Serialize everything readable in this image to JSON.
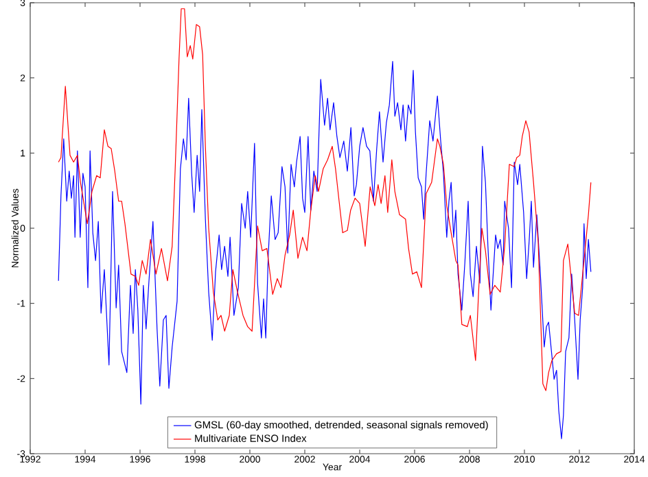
{
  "chart_data": {
    "type": "line",
    "xlabel": "Year",
    "ylabel": "Normalized Values",
    "xlim": [
      1992,
      2014
    ],
    "ylim": [
      -3,
      3
    ],
    "xticks": [
      1992,
      1994,
      1996,
      1998,
      2000,
      2002,
      2004,
      2006,
      2008,
      2010,
      2012,
      2014
    ],
    "yticks": [
      -3,
      -2,
      -1,
      0,
      1,
      2,
      3
    ],
    "grid": false,
    "legend": "bottom",
    "line_style": "solid",
    "marker": "none",
    "series": [
      {
        "name": "GMSL (60-day smoothed, detrended, seasonal signals removed)",
        "color": "#0000ff",
        "x": [
          1993.03,
          1993.12,
          1993.22,
          1993.33,
          1993.42,
          1993.5,
          1993.58,
          1993.63,
          1993.72,
          1993.82,
          1993.92,
          1994.0,
          1994.1,
          1994.18,
          1994.28,
          1994.38,
          1994.48,
          1994.58,
          1994.7,
          1994.87,
          1995.0,
          1995.13,
          1995.22,
          1995.33,
          1995.52,
          1995.65,
          1995.75,
          1995.83,
          1995.92,
          1996.03,
          1996.12,
          1996.22,
          1996.32,
          1996.47,
          1996.62,
          1996.72,
          1996.85,
          1996.95,
          1997.05,
          1997.17,
          1997.35,
          1997.47,
          1997.58,
          1997.68,
          1997.77,
          1997.88,
          1997.97,
          1998.08,
          1998.17,
          1998.25,
          1998.38,
          1998.5,
          1998.63,
          1998.75,
          1998.88,
          1998.97,
          1999.08,
          1999.2,
          1999.28,
          1999.42,
          1999.58,
          1999.7,
          1999.83,
          1999.92,
          2000.03,
          2000.17,
          2000.28,
          2000.42,
          2000.5,
          2000.58,
          2000.67,
          2000.78,
          2000.92,
          2001.03,
          2001.17,
          2001.28,
          2001.38,
          2001.5,
          2001.62,
          2001.7,
          2001.83,
          2001.92,
          2002.0,
          2002.12,
          2002.22,
          2002.33,
          2002.45,
          2002.58,
          2002.72,
          2002.83,
          2002.92,
          2003.05,
          2003.17,
          2003.28,
          2003.42,
          2003.55,
          2003.68,
          2003.8,
          2003.88,
          2004.0,
          2004.12,
          2004.25,
          2004.37,
          2004.5,
          2004.62,
          2004.72,
          2004.85,
          2004.97,
          2005.08,
          2005.2,
          2005.28,
          2005.38,
          2005.5,
          2005.58,
          2005.67,
          2005.77,
          2005.87,
          2005.95,
          2006.03,
          2006.13,
          2006.25,
          2006.33,
          2006.42,
          2006.55,
          2006.67,
          2006.83,
          2006.95,
          2007.05,
          2007.17,
          2007.25,
          2007.33,
          2007.42,
          2007.5,
          2007.58,
          2007.72,
          2007.83,
          2007.95,
          2008.03,
          2008.13,
          2008.25,
          2008.38,
          2008.47,
          2008.58,
          2008.67,
          2008.78,
          2008.95,
          2009.03,
          2009.12,
          2009.22,
          2009.28,
          2009.42,
          2009.53,
          2009.63,
          2009.75,
          2009.83,
          2009.97,
          2010.08,
          2010.17,
          2010.25,
          2010.33,
          2010.45,
          2010.58,
          2010.72,
          2010.8,
          2010.88,
          2011.0,
          2011.08,
          2011.17,
          2011.25,
          2011.35,
          2011.42,
          2011.5,
          2011.62,
          2011.72,
          2011.83,
          2011.95,
          2012.03,
          2012.12,
          2012.17,
          2012.25,
          2012.33,
          2012.42
        ],
        "values": [
          -0.7,
          0.43,
          1.19,
          0.36,
          0.76,
          0.4,
          0.7,
          -0.12,
          1.03,
          -0.12,
          0.73,
          0.55,
          -0.79,
          1.03,
          -0.06,
          -0.43,
          0.09,
          -1.13,
          -0.55,
          -1.82,
          0.49,
          -1.06,
          -0.49,
          -1.64,
          -1.92,
          -0.76,
          -1.4,
          -0.55,
          -1.09,
          -2.34,
          -0.76,
          -1.34,
          -0.73,
          0.09,
          -1.34,
          -2.1,
          -1.22,
          -1.16,
          -2.13,
          -1.58,
          -0.97,
          0.79,
          1.19,
          0.91,
          1.73,
          0.73,
          0.21,
          0.97,
          0.49,
          1.58,
          0.12,
          -0.85,
          -1.49,
          -0.58,
          -0.09,
          -0.55,
          -0.24,
          -0.64,
          -0.12,
          -1.16,
          -0.79,
          0.33,
          0.0,
          0.49,
          -0.12,
          1.13,
          -0.73,
          -1.46,
          -0.94,
          -1.46,
          -0.36,
          0.43,
          -0.15,
          -0.06,
          0.82,
          0.55,
          -0.33,
          0.85,
          0.55,
          0.88,
          1.22,
          0.4,
          0.21,
          1.22,
          0.24,
          0.76,
          0.49,
          1.98,
          1.37,
          1.73,
          1.31,
          1.67,
          1.22,
          0.94,
          1.16,
          0.76,
          1.34,
          0.43,
          0.58,
          1.09,
          1.34,
          1.09,
          1.03,
          0.36,
          1.06,
          1.55,
          0.88,
          1.4,
          1.64,
          2.22,
          1.49,
          1.67,
          1.31,
          1.64,
          1.16,
          1.64,
          1.52,
          2.1,
          1.28,
          0.67,
          0.55,
          0.12,
          0.73,
          1.43,
          1.16,
          1.76,
          1.16,
          0.73,
          -0.12,
          0.36,
          0.61,
          -0.12,
          0.24,
          -0.61,
          -1.09,
          -0.46,
          0.36,
          -0.61,
          -0.91,
          -0.24,
          -0.73,
          1.09,
          0.61,
          -0.24,
          -1.09,
          -0.09,
          -0.27,
          -0.15,
          -0.49,
          0.36,
          0.0,
          -0.79,
          0.88,
          0.58,
          0.85,
          0.21,
          -0.67,
          -0.18,
          0.36,
          -0.52,
          0.18,
          -0.61,
          -1.58,
          -1.31,
          -1.25,
          -1.7,
          -2.01,
          -1.89,
          -2.43,
          -2.8,
          -2.49,
          -1.64,
          -1.46,
          -0.61,
          -1.22,
          -2.01,
          -1.22,
          -0.79,
          0.06,
          -0.67,
          -0.15,
          -0.58
        ]
      },
      {
        "name": "Multivariate ENSO Index",
        "color": "#ff0000",
        "x": [
          1993.03,
          1993.12,
          1993.28,
          1993.37,
          1993.45,
          1993.58,
          1993.72,
          1993.83,
          1994.08,
          1994.25,
          1994.42,
          1994.55,
          1994.7,
          1994.83,
          1994.95,
          1995.08,
          1995.22,
          1995.33,
          1995.45,
          1995.67,
          1995.83,
          1995.95,
          1996.08,
          1996.22,
          1996.38,
          1996.58,
          1996.78,
          1997.0,
          1997.17,
          1997.28,
          1997.42,
          1997.5,
          1997.62,
          1997.72,
          1997.83,
          1997.92,
          1998.05,
          1998.17,
          1998.28,
          1998.38,
          1998.5,
          1998.67,
          1998.83,
          1998.95,
          1999.08,
          1999.25,
          1999.38,
          1999.55,
          1999.75,
          1999.92,
          2000.08,
          2000.28,
          2000.45,
          2000.62,
          2000.83,
          2001.0,
          2001.13,
          2001.28,
          2001.45,
          2001.58,
          2001.75,
          2001.92,
          2002.08,
          2002.22,
          2002.38,
          2002.5,
          2002.67,
          2002.83,
          2003.0,
          2003.12,
          2003.25,
          2003.38,
          2003.55,
          2003.67,
          2003.83,
          2004.0,
          2004.2,
          2004.38,
          2004.55,
          2004.67,
          2004.78,
          2004.92,
          2005.02,
          2005.17,
          2005.28,
          2005.45,
          2005.67,
          2005.78,
          2005.92,
          2006.08,
          2006.25,
          2006.42,
          2006.62,
          2006.83,
          2006.92,
          2007.05,
          2007.17,
          2007.33,
          2007.5,
          2007.58,
          2007.72,
          2007.92,
          2008.03,
          2008.22,
          2008.33,
          2008.45,
          2008.58,
          2008.75,
          2008.92,
          2009.12,
          2009.28,
          2009.45,
          2009.62,
          2009.72,
          2009.83,
          2009.92,
          2010.05,
          2010.17,
          2010.33,
          2010.5,
          2010.67,
          2010.78,
          2010.88,
          2011.0,
          2011.17,
          2011.33,
          2011.42,
          2011.58,
          2011.72,
          2011.83,
          2011.97,
          2012.17,
          2012.33,
          2012.42
        ],
        "values": [
          0.88,
          0.94,
          1.89,
          1.4,
          0.97,
          0.88,
          0.97,
          0.61,
          0.06,
          0.49,
          0.7,
          0.67,
          1.31,
          1.09,
          1.06,
          0.76,
          0.36,
          0.36,
          0.06,
          -0.61,
          -0.64,
          -0.76,
          -0.43,
          -0.61,
          -0.15,
          -0.61,
          -0.27,
          -0.7,
          -0.24,
          0.79,
          2.25,
          2.92,
          2.92,
          2.28,
          2.43,
          2.25,
          2.71,
          2.68,
          2.31,
          1.09,
          0.0,
          -0.85,
          -1.22,
          -1.16,
          -1.37,
          -1.16,
          -0.55,
          -0.85,
          -1.16,
          -1.31,
          -1.37,
          0.03,
          -0.3,
          -0.27,
          -0.88,
          -0.67,
          -0.79,
          -0.36,
          -0.09,
          0.24,
          -0.4,
          -0.12,
          -0.3,
          0.24,
          0.7,
          0.49,
          0.79,
          0.91,
          1.09,
          0.79,
          0.36,
          -0.06,
          -0.03,
          0.24,
          0.4,
          0.33,
          -0.24,
          0.55,
          0.3,
          0.58,
          0.33,
          0.7,
          0.21,
          0.91,
          0.49,
          0.18,
          0.12,
          -0.27,
          -0.61,
          -0.58,
          -0.79,
          0.46,
          0.61,
          1.19,
          1.09,
          0.85,
          0.3,
          -0.06,
          -0.43,
          -0.49,
          -1.28,
          -1.31,
          -1.16,
          -1.76,
          -0.85,
          0.0,
          -0.3,
          -0.88,
          -0.76,
          -0.85,
          -0.24,
          0.85,
          0.82,
          0.94,
          0.97,
          1.22,
          1.43,
          1.28,
          0.61,
          -0.18,
          -2.07,
          -2.16,
          -1.92,
          -1.76,
          -1.67,
          -1.64,
          -0.43,
          -0.21,
          -0.73,
          -1.13,
          -1.16,
          -0.43,
          0.18,
          0.61
        ]
      }
    ]
  }
}
